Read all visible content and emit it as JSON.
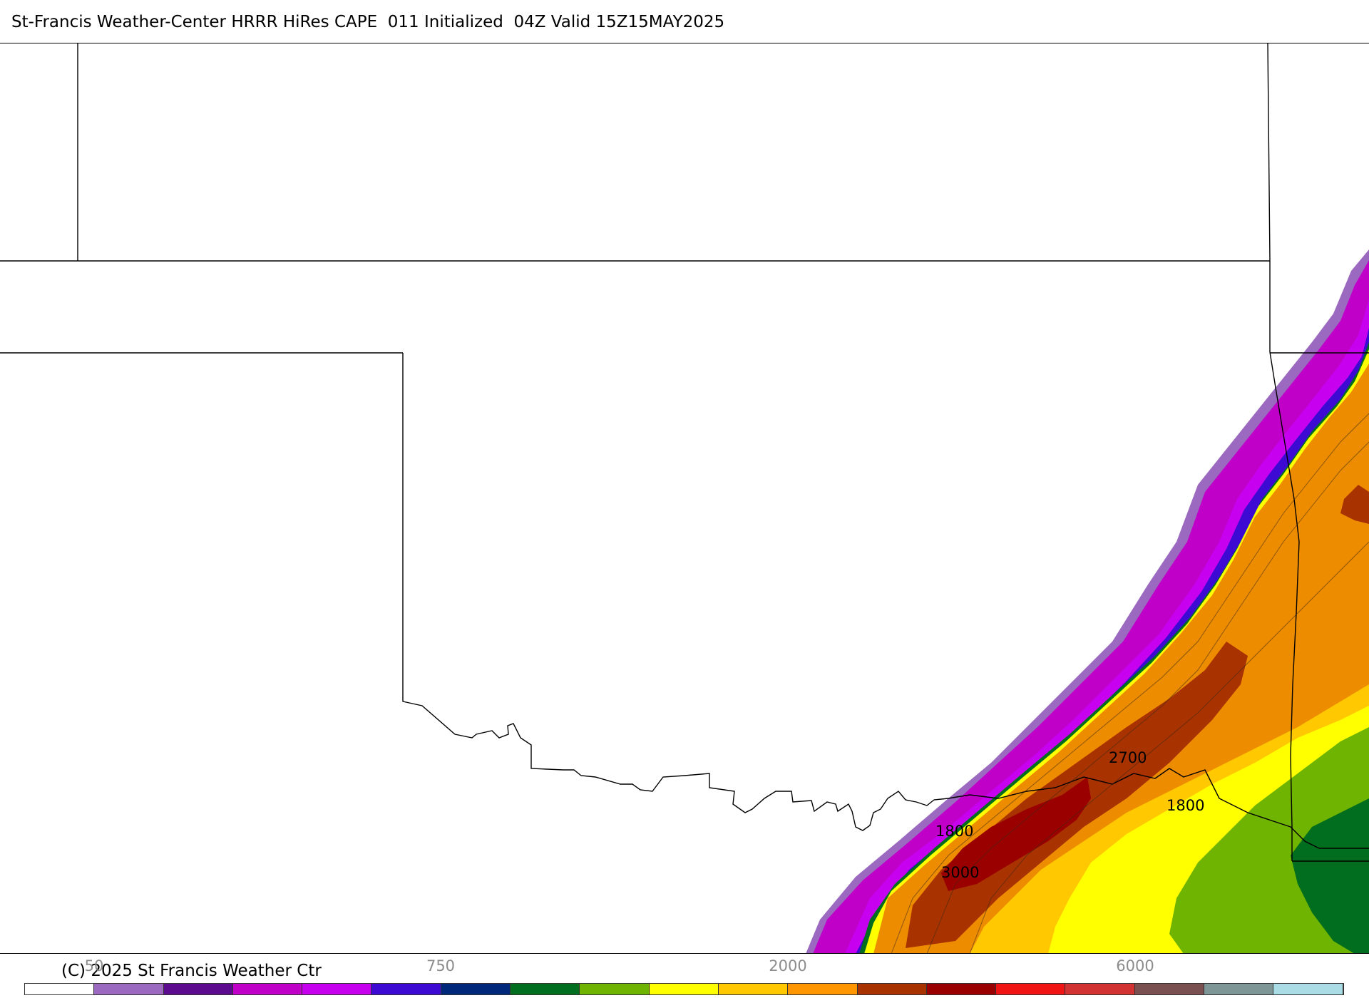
{
  "header": {
    "title": "St-Francis Weather-Center HRRR HiRes CAPE  011 Initialized  04Z Valid 15Z15MAY2025"
  },
  "footer": {
    "copyright": "(C) 2025 St Francis Weather Ctr"
  },
  "colorbar": {
    "tick_labels": [
      "50",
      "750",
      "2000",
      "6000"
    ],
    "colors": [
      "#ffffff",
      "#9b69c0",
      "#5c0a8e",
      "#c000c8",
      "#c800f0",
      "#3c0ad2",
      "#00287a",
      "#006e1e",
      "#6eb400",
      "#ffff00",
      "#ffc800",
      "#ff9600",
      "#a83200",
      "#9a0000",
      "#f01414",
      "#d23232",
      "#7a5050",
      "#7f9696",
      "#aadce6"
    ]
  },
  "contour_labels": [
    "1800",
    "2700",
    "1800",
    "3000"
  ],
  "colors": {
    "state_border": "#000000",
    "lavender": "#9b69c0",
    "purple": "#c000c8",
    "magenta": "#c800f0",
    "blue": "#3c0ad2",
    "green_dark": "#006e1e",
    "green": "#6eb400",
    "yellow": "#ffff00",
    "gold": "#ffc800",
    "orange": "#ee8c00",
    "brown": "#a83200",
    "darkred": "#9a0000"
  }
}
